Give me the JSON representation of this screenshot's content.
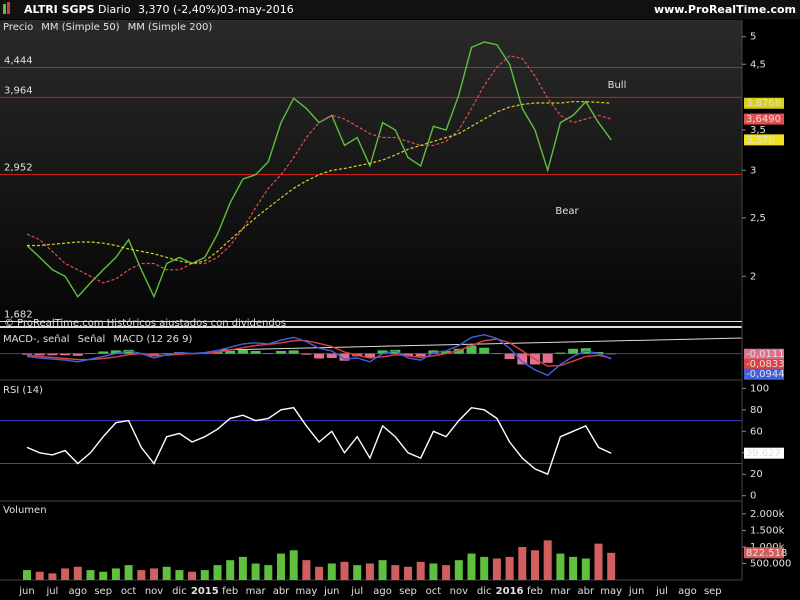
{
  "chart_data": {
    "title": "ALTRI SGPS",
    "interval": "Diario",
    "last_change": "3,370 (-2,40%)",
    "date": "03-may-2016",
    "source": "www.ProRealTime.com",
    "categories": [
      "jun",
      null,
      "jul",
      null,
      "ago",
      null,
      "sep",
      null,
      "oct",
      null,
      "nov",
      null,
      "dic",
      null,
      "2015",
      null,
      "feb",
      null,
      "mar",
      null,
      "abr",
      null,
      "may",
      null,
      "jun",
      null,
      "jul",
      null,
      "ago",
      null,
      "sep",
      null,
      "oct",
      null,
      "nov",
      null,
      "dic",
      null,
      "2016",
      null,
      "feb",
      null,
      "mar",
      null,
      "abr",
      null,
      "may",
      null,
      "jun",
      null,
      "jul",
      null,
      "ago",
      null,
      "sep",
      null
    ],
    "panels": [
      {
        "type": "line",
        "log": true,
        "ylim": [
          1.66,
          5.33
        ],
        "yticks": [
          2,
          {
            "value": 2.5,
            "label": "2,5"
          },
          3,
          {
            "value": 3.5,
            "label": "3,5"
          },
          {
            "value": 4.5,
            "label": "4,5"
          },
          5
        ],
        "levels": [
          {
            "value": 4.444,
            "label": "4,444",
            "color": "#c81e1e"
          },
          {
            "value": 3.964,
            "label": "3,964",
            "color": "#c81e1e"
          },
          {
            "value": 2.952,
            "label": "2,952",
            "color": "#c81e1e"
          },
          {
            "value": 1.682,
            "label": "1,682",
            "color": "#e0e0e0"
          }
        ],
        "watermark": "© ProRealTime.com Históricos ajustados con dividendos",
        "annotations": [
          {
            "text": "Bull",
            "color": "#2ecc40"
          },
          {
            "text": "Bear",
            "color": "#e02020"
          }
        ],
        "series": [
          {
            "name": "Precio",
            "color": "#5fbf3f",
            "last_label": "3,370",
            "label_color": "#f0e020",
            "values": [
              2.25,
              2.15,
              2.05,
              2.0,
              1.85,
              1.95,
              2.05,
              2.15,
              2.3,
              2.05,
              1.85,
              2.1,
              2.15,
              2.1,
              2.15,
              2.35,
              2.65,
              2.9,
              2.95,
              3.1,
              3.6,
              3.95,
              3.8,
              3.6,
              3.7,
              3.3,
              3.4,
              3.05,
              3.6,
              3.5,
              3.15,
              3.05,
              3.55,
              3.5,
              4.0,
              4.8,
              4.9,
              4.85,
              4.5,
              3.8,
              3.5,
              3.0,
              3.6,
              3.7,
              3.9,
              3.6,
              3.37,
              null,
              null,
              null,
              null,
              null,
              null,
              null,
              null,
              null
            ]
          },
          {
            "name": "MM (Simple 50)",
            "color": "#e05050",
            "dash": true,
            "last_label": "3,6490",
            "label_color": "#e05050",
            "values": [
              2.35,
              2.3,
              2.2,
              2.1,
              2.05,
              2.0,
              1.95,
              1.98,
              2.05,
              2.1,
              2.1,
              2.05,
              2.05,
              2.1,
              2.1,
              2.15,
              2.25,
              2.4,
              2.6,
              2.8,
              2.95,
              3.15,
              3.4,
              3.6,
              3.7,
              3.65,
              3.55,
              3.45,
              3.4,
              3.4,
              3.35,
              3.3,
              3.3,
              3.35,
              3.5,
              3.8,
              4.15,
              4.45,
              4.65,
              4.6,
              4.3,
              3.95,
              3.7,
              3.6,
              3.65,
              3.7,
              3.649,
              null,
              null,
              null,
              null,
              null,
              null,
              null,
              null,
              null
            ]
          },
          {
            "name": "MM (Simple 200)",
            "color": "#d8d020",
            "dash": true,
            "last_label": "3,8768",
            "label_color": "#d8d020",
            "values": [
              2.25,
              2.25,
              2.26,
              2.27,
              2.28,
              2.28,
              2.27,
              2.25,
              2.22,
              2.2,
              2.18,
              2.15,
              2.12,
              2.1,
              2.12,
              2.2,
              2.3,
              2.4,
              2.5,
              2.6,
              2.7,
              2.8,
              2.88,
              2.95,
              3.0,
              3.02,
              3.05,
              3.08,
              3.12,
              3.18,
              3.25,
              3.3,
              3.35,
              3.4,
              3.45,
              3.55,
              3.65,
              3.75,
              3.82,
              3.86,
              3.88,
              3.88,
              3.88,
              3.9,
              3.9,
              3.89,
              3.8768,
              null,
              null,
              null,
              null,
              null,
              null,
              null,
              null,
              null
            ]
          }
        ]
      },
      {
        "type": "line",
        "ylim": [
          -0.45,
          0.4
        ],
        "levels": [
          {
            "value": 0,
            "color": "#4040c0"
          }
        ],
        "series": [
          {
            "name": "MACD-, señal",
            "type": "bar",
            "color": "#50c050",
            "negative_color": "#e07090",
            "last_label": "-0,0111",
            "label_color": "#e07090",
            "values": [
              -0.02,
              -0.03,
              -0.03,
              -0.03,
              -0.04,
              0.01,
              0.04,
              0.06,
              0.07,
              0.0,
              -0.05,
              0.01,
              0.03,
              0.0,
              0.01,
              0.03,
              0.05,
              0.07,
              0.05,
              0.01,
              0.05,
              0.06,
              -0.02,
              -0.09,
              -0.08,
              -0.13,
              -0.05,
              -0.07,
              0.06,
              0.07,
              -0.04,
              -0.05,
              0.06,
              0.05,
              0.09,
              0.15,
              0.11,
              0.01,
              -0.1,
              -0.2,
              -0.2,
              -0.17,
              0.02,
              0.09,
              0.1,
              0.03,
              -0.0111,
              null,
              null,
              null,
              null,
              null,
              null,
              null,
              null,
              null
            ]
          },
          {
            "name": "Señal",
            "color": "#e04040",
            "last_label": "-0,0833",
            "label_color": "#e04040",
            "values": [
              -0.03,
              -0.05,
              -0.07,
              -0.09,
              -0.11,
              -0.11,
              -0.09,
              -0.06,
              -0.02,
              0.0,
              -0.03,
              -0.03,
              -0.01,
              0.0,
              0.01,
              0.03,
              0.07,
              0.11,
              0.15,
              0.17,
              0.2,
              0.24,
              0.24,
              0.19,
              0.13,
              0.03,
              -0.03,
              -0.08,
              -0.06,
              -0.02,
              -0.04,
              -0.07,
              -0.04,
              0.0,
              0.06,
              0.15,
              0.24,
              0.27,
              0.2,
              0.05,
              -0.1,
              -0.23,
              -0.22,
              -0.14,
              -0.05,
              -0.03,
              -0.0833,
              null,
              null,
              null,
              null,
              null,
              null,
              null,
              null,
              null
            ]
          },
          {
            "name": "MACD (12 26 9)",
            "color": "#4060e0",
            "last_label": "-0,0944",
            "label_color": "#4060e0",
            "values": [
              -0.05,
              -0.08,
              -0.1,
              -0.12,
              -0.15,
              -0.1,
              -0.05,
              0.0,
              0.05,
              0.0,
              -0.08,
              -0.02,
              0.02,
              0.0,
              0.02,
              0.06,
              0.12,
              0.18,
              0.2,
              0.18,
              0.25,
              0.3,
              0.22,
              0.1,
              0.05,
              -0.1,
              -0.08,
              -0.15,
              0.0,
              0.05,
              -0.08,
              -0.12,
              0.02,
              0.05,
              0.15,
              0.3,
              0.35,
              0.28,
              0.1,
              -0.15,
              -0.3,
              -0.4,
              -0.2,
              -0.05,
              0.05,
              0.0,
              -0.0944,
              null,
              null,
              null,
              null,
              null,
              null,
              null,
              null,
              null
            ]
          }
        ]
      },
      {
        "type": "line",
        "ylim": [
          -4,
          105
        ],
        "yticks": [
          0,
          20,
          40,
          60,
          80,
          100
        ],
        "levels": [
          {
            "value": 70,
            "color": "#4040d0"
          },
          {
            "value": 30,
            "color": "#4040d0"
          }
        ],
        "series": [
          {
            "name": "RSI (14)",
            "color": "#ffffff",
            "last_label": "39,627",
            "label_color": "#ffffff",
            "values": [
              45,
              40,
              38,
              42,
              30,
              40,
              55,
              68,
              70,
              45,
              30,
              55,
              58,
              50,
              55,
              62,
              72,
              75,
              70,
              72,
              80,
              82,
              65,
              50,
              60,
              40,
              55,
              35,
              65,
              55,
              40,
              35,
              60,
              55,
              70,
              82,
              80,
              72,
              50,
              35,
              25,
              20,
              55,
              60,
              65,
              45,
              39.627,
              null,
              null,
              null,
              null,
              null,
              null,
              null,
              null,
              null
            ]
          }
        ]
      },
      {
        "type": "bar",
        "ylim": [
          0,
          2330000
        ],
        "yticks": [
          {
            "value": 500000,
            "label": "500.000"
          },
          {
            "value": 1000000,
            "label": "1.000k"
          },
          {
            "value": 1500000,
            "label": "1.500k"
          },
          {
            "value": 2000000,
            "label": "2.000k"
          }
        ],
        "series": [
          {
            "name": "Volumen",
            "color": "#5fbf3f",
            "negative_color": "#d06060",
            "last_label": "822.518",
            "label_color": "#d06060",
            "values": [
              300000,
              250000,
              200000,
              350000,
              400000,
              300000,
              250000,
              350000,
              450000,
              300000,
              350000,
              400000,
              300000,
              250000,
              300000,
              450000,
              600000,
              700000,
              500000,
              450000,
              800000,
              900000,
              600000,
              400000,
              500000,
              550000,
              450000,
              500000,
              600000,
              450000,
              400000,
              550000,
              500000,
              450000,
              600000,
              800000,
              700000,
              650000,
              700000,
              1000000,
              900000,
              1200000,
              800000,
              700000,
              650000,
              1100000,
              822518,
              null,
              null,
              null,
              null,
              null,
              null,
              null,
              null,
              null
            ]
          }
        ]
      }
    ]
  }
}
